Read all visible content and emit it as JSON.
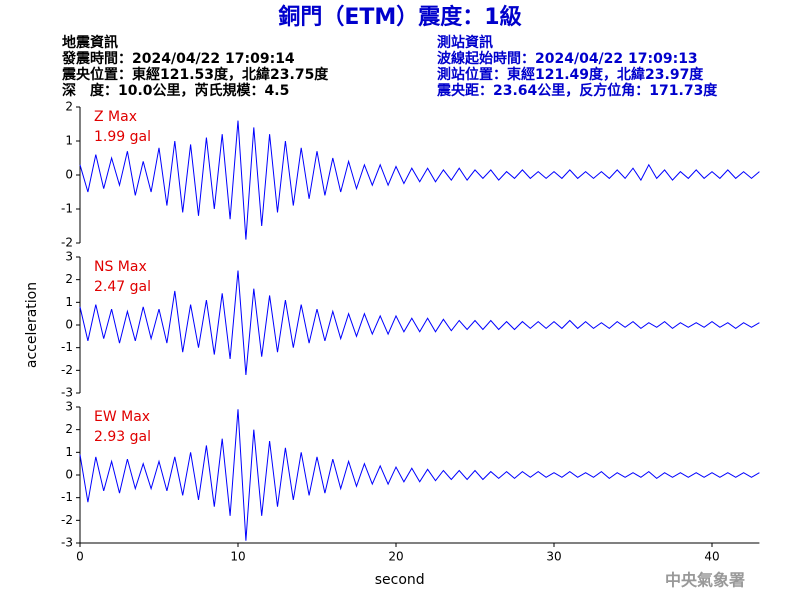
{
  "header": {
    "title": "銅門（ETM）震度：1級",
    "left": [
      "地震資訊",
      "發震時間：2024/04/22 17:09:14",
      "震央位置：東經121.53度，北緯23.75度",
      "深　度：10.0公里，芮氏規模：4.5"
    ],
    "right": [
      "測站資訊",
      "波線起始時間：2024/04/22 17:09:13",
      "測站位置：東經121.49度，北緯23.97度",
      "震央距：23.64公里，反方位角：171.73度"
    ]
  },
  "watermark": "中央氣象署",
  "chart_data": [
    {
      "type": "line",
      "annotation": [
        "Z Max",
        "1.99 gal"
      ],
      "color": "#0000ff",
      "xlim": [
        0,
        43
      ],
      "ylim": [
        -2,
        2
      ],
      "yticks": [
        -2,
        -1,
        0,
        1,
        2
      ],
      "x": [
        0,
        0.5,
        1,
        1.5,
        2,
        2.5,
        3,
        3.5,
        4,
        4.5,
        5,
        5.5,
        6,
        6.5,
        7,
        7.5,
        8,
        8.5,
        9,
        9.5,
        10,
        10.5,
        11,
        11.5,
        12,
        12.5,
        13,
        13.5,
        14,
        14.5,
        15,
        15.5,
        16,
        16.5,
        17,
        17.5,
        18,
        18.5,
        19,
        19.5,
        20,
        20.5,
        21,
        21.5,
        22,
        22.5,
        23,
        23.5,
        24,
        24.5,
        25,
        25.5,
        26,
        26.5,
        27,
        27.5,
        28,
        28.5,
        29,
        29.5,
        30,
        30.5,
        31,
        31.5,
        32,
        32.5,
        33,
        33.5,
        34,
        34.5,
        35,
        35.5,
        36,
        36.5,
        37,
        37.5,
        38,
        38.5,
        39,
        39.5,
        40,
        40.5,
        41,
        41.5,
        42,
        42.5,
        43
      ],
      "values": [
        0.3,
        -0.5,
        0.6,
        -0.4,
        0.5,
        -0.3,
        0.7,
        -0.6,
        0.4,
        -0.5,
        0.8,
        -0.9,
        1.0,
        -1.1,
        0.9,
        -1.2,
        1.1,
        -1.0,
        1.2,
        -1.3,
        1.6,
        -1.9,
        1.4,
        -1.5,
        1.2,
        -1.1,
        1.0,
        -0.9,
        0.8,
        -0.7,
        0.7,
        -0.6,
        0.5,
        -0.5,
        0.4,
        -0.4,
        0.3,
        -0.3,
        0.3,
        -0.3,
        0.25,
        -0.25,
        0.2,
        -0.2,
        0.2,
        -0.2,
        0.15,
        -0.15,
        0.2,
        -0.15,
        0.15,
        -0.1,
        0.15,
        -0.15,
        0.1,
        -0.1,
        0.15,
        -0.1,
        0.1,
        -0.1,
        0.1,
        -0.1,
        0.15,
        -0.1,
        0.1,
        -0.1,
        0.1,
        -0.1,
        0.15,
        -0.1,
        0.2,
        -0.15,
        0.3,
        -0.1,
        0.15,
        -0.15,
        0.1,
        -0.1,
        0.15,
        -0.1,
        0.1,
        -0.1,
        0.15,
        -0.1,
        0.1,
        -0.1,
        0.1
      ]
    },
    {
      "type": "line",
      "annotation": [
        "NS Max",
        "2.47 gal"
      ],
      "y_label": "acceleration",
      "color": "#0000ff",
      "xlim": [
        0,
        43
      ],
      "ylim": [
        -3,
        3
      ],
      "yticks": [
        -3,
        -2,
        -1,
        0,
        1,
        2,
        3
      ],
      "x": [
        0,
        0.5,
        1,
        1.5,
        2,
        2.5,
        3,
        3.5,
        4,
        4.5,
        5,
        5.5,
        6,
        6.5,
        7,
        7.5,
        8,
        8.5,
        9,
        9.5,
        10,
        10.5,
        11,
        11.5,
        12,
        12.5,
        13,
        13.5,
        14,
        14.5,
        15,
        15.5,
        16,
        16.5,
        17,
        17.5,
        18,
        18.5,
        19,
        19.5,
        20,
        20.5,
        21,
        21.5,
        22,
        22.5,
        23,
        23.5,
        24,
        24.5,
        25,
        25.5,
        26,
        26.5,
        27,
        27.5,
        28,
        28.5,
        29,
        29.5,
        30,
        30.5,
        31,
        31.5,
        32,
        32.5,
        33,
        33.5,
        34,
        34.5,
        35,
        35.5,
        36,
        36.5,
        37,
        37.5,
        38,
        38.5,
        39,
        39.5,
        40,
        40.5,
        41,
        41.5,
        42,
        42.5,
        43
      ],
      "values": [
        0.8,
        -0.7,
        0.9,
        -0.6,
        0.7,
        -0.8,
        0.6,
        -0.7,
        0.8,
        -0.6,
        0.7,
        -0.8,
        1.5,
        -1.2,
        0.9,
        -1.0,
        1.1,
        -1.3,
        1.4,
        -1.5,
        2.4,
        -2.2,
        1.6,
        -1.4,
        1.3,
        -1.2,
        1.1,
        -1.0,
        0.9,
        -0.8,
        0.7,
        -0.7,
        0.6,
        -0.6,
        0.5,
        -0.5,
        0.5,
        -0.4,
        0.4,
        -0.4,
        0.4,
        -0.3,
        0.3,
        -0.3,
        0.3,
        -0.3,
        0.25,
        -0.25,
        0.2,
        -0.2,
        0.2,
        -0.2,
        0.2,
        -0.2,
        0.15,
        -0.2,
        0.15,
        -0.15,
        0.15,
        -0.15,
        0.15,
        -0.15,
        0.2,
        -0.15,
        0.15,
        -0.15,
        0.1,
        -0.15,
        0.15,
        -0.1,
        0.15,
        -0.15,
        0.1,
        -0.1,
        0.15,
        -0.15,
        0.1,
        -0.1,
        0.1,
        -0.1,
        0.15,
        -0.1,
        0.1,
        -0.15,
        0.1,
        -0.1,
        0.1
      ]
    },
    {
      "type": "line",
      "annotation": [
        "EW Max",
        "2.93 gal"
      ],
      "x_label": "second",
      "color": "#0000ff",
      "xlim": [
        0,
        43
      ],
      "ylim": [
        -3,
        3
      ],
      "yticks": [
        -3,
        -2,
        -1,
        0,
        1,
        2,
        3
      ],
      "xticks": [
        0,
        10,
        20,
        30,
        40
      ],
      "x": [
        0,
        0.5,
        1,
        1.5,
        2,
        2.5,
        3,
        3.5,
        4,
        4.5,
        5,
        5.5,
        6,
        6.5,
        7,
        7.5,
        8,
        8.5,
        9,
        9.5,
        10,
        10.5,
        11,
        11.5,
        12,
        12.5,
        13,
        13.5,
        14,
        14.5,
        15,
        15.5,
        16,
        16.5,
        17,
        17.5,
        18,
        18.5,
        19,
        19.5,
        20,
        20.5,
        21,
        21.5,
        22,
        22.5,
        23,
        23.5,
        24,
        24.5,
        25,
        25.5,
        26,
        26.5,
        27,
        27.5,
        28,
        28.5,
        29,
        29.5,
        30,
        30.5,
        31,
        31.5,
        32,
        32.5,
        33,
        33.5,
        34,
        34.5,
        35,
        35.5,
        36,
        36.5,
        37,
        37.5,
        38,
        38.5,
        39,
        39.5,
        40,
        40.5,
        41,
        41.5,
        42,
        42.5,
        43
      ],
      "values": [
        0.9,
        -1.2,
        0.8,
        -0.7,
        0.6,
        -0.8,
        0.7,
        -0.6,
        0.5,
        -0.6,
        0.6,
        -0.7,
        0.8,
        -0.9,
        1.0,
        -1.1,
        1.3,
        -1.4,
        1.6,
        -1.8,
        2.9,
        -2.9,
        2.0,
        -1.8,
        1.5,
        -1.4,
        1.2,
        -1.1,
        1.0,
        -0.9,
        0.8,
        -0.8,
        0.7,
        -0.6,
        0.6,
        -0.5,
        0.5,
        -0.4,
        0.4,
        -0.4,
        0.35,
        -0.3,
        0.3,
        -0.3,
        0.25,
        -0.25,
        0.2,
        -0.2,
        0.2,
        -0.2,
        0.2,
        -0.2,
        0.15,
        -0.15,
        0.15,
        -0.15,
        0.15,
        -0.1,
        0.15,
        -0.1,
        0.1,
        -0.1,
        0.15,
        -0.1,
        0.1,
        -0.1,
        0.15,
        -0.15,
        0.1,
        -0.1,
        0.1,
        -0.1,
        0.15,
        -0.15,
        0.1,
        -0.1,
        0.1,
        -0.1,
        0.1,
        -0.1,
        0.1,
        -0.1,
        0.1,
        -0.1,
        0.1,
        -0.1,
        0.1
      ]
    }
  ]
}
